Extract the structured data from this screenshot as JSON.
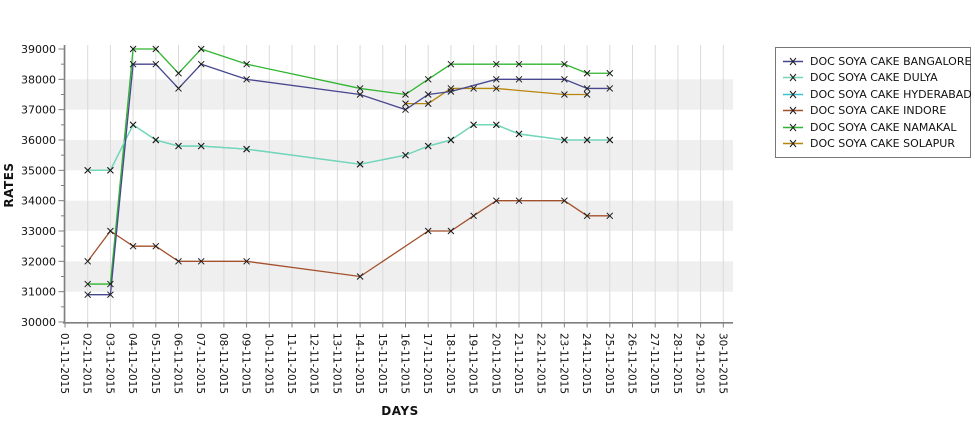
{
  "chart_data": {
    "type": "line",
    "title": "",
    "xlabel": "DAYS",
    "ylabel": "RATES",
    "ylim": [
      30000,
      39000
    ],
    "ytick_step": 1000,
    "ytick_minor_step": 500,
    "legend_position": "right",
    "marker": "x",
    "x_labels": [
      "01-11-2015",
      "02-11-2015",
      "03-11-2015",
      "04-11-2015",
      "05-11-2015",
      "06-11-2015",
      "07-11-2015",
      "08-11-2015",
      "09-11-2015",
      "10-11-2015",
      "11-11-2015",
      "12-11-2015",
      "13-11-2015",
      "14-11-2015",
      "15-11-2015",
      "16-11-2015",
      "17-11-2015",
      "18-11-2015",
      "19-11-2015",
      "20-11-2015",
      "21-11-2015",
      "22-11-2015",
      "23-11-2015",
      "24-11-2015",
      "25-11-2015",
      "26-11-2015",
      "27-11-2015",
      "28-11-2015",
      "29-11-2015",
      "30-11-2015"
    ],
    "series": [
      {
        "key": "bangalore",
        "name": "DOC SOYA CAKE BANGALORE",
        "color": "#47478F",
        "points": [
          [
            2,
            30900
          ],
          [
            3,
            30900
          ],
          [
            4,
            38500
          ],
          [
            5,
            38500
          ],
          [
            6,
            37700
          ],
          [
            7,
            38500
          ],
          [
            9,
            38000
          ],
          [
            14,
            37500
          ],
          [
            16,
            37000
          ],
          [
            17,
            37500
          ],
          [
            18,
            37600
          ],
          [
            20,
            38000
          ],
          [
            21,
            38000
          ],
          [
            23,
            38000
          ],
          [
            24,
            37700
          ],
          [
            25,
            37700
          ]
        ]
      },
      {
        "key": "dulya",
        "name": "DOC SOYA CAKE DULYA",
        "color": "#74D7B6",
        "points": [
          [
            2,
            35000
          ],
          [
            3,
            35000
          ],
          [
            4,
            36500
          ],
          [
            5,
            36000
          ],
          [
            6,
            35800
          ],
          [
            7,
            35800
          ],
          [
            9,
            35700
          ],
          [
            14,
            35200
          ],
          [
            16,
            35500
          ],
          [
            17,
            35800
          ],
          [
            18,
            36000
          ],
          [
            19,
            36500
          ],
          [
            20,
            36500
          ],
          [
            21,
            36200
          ],
          [
            23,
            36000
          ],
          [
            24,
            36000
          ],
          [
            25,
            36000
          ]
        ]
      },
      {
        "key": "hyderabad",
        "name": "DOC SOYA CAKE HYDERABAD",
        "color": "#3BC2CE",
        "overlaps": "dulya",
        "points": [
          [
            2,
            35000
          ],
          [
            3,
            35000
          ],
          [
            4,
            36500
          ],
          [
            5,
            36000
          ],
          [
            6,
            35800
          ],
          [
            7,
            35800
          ],
          [
            9,
            35700
          ],
          [
            14,
            35200
          ],
          [
            16,
            35500
          ],
          [
            17,
            35800
          ],
          [
            18,
            36000
          ],
          [
            19,
            36500
          ],
          [
            20,
            36500
          ],
          [
            21,
            36200
          ],
          [
            23,
            36000
          ],
          [
            24,
            36000
          ],
          [
            25,
            36000
          ]
        ]
      },
      {
        "key": "indore",
        "name": "DOC SOYA CAKE INDORE",
        "color": "#A3512C",
        "points": [
          [
            2,
            32000
          ],
          [
            3,
            33000
          ],
          [
            4,
            32500
          ],
          [
            5,
            32500
          ],
          [
            6,
            32000
          ],
          [
            7,
            32000
          ],
          [
            9,
            32000
          ],
          [
            14,
            31500
          ],
          [
            17,
            33000
          ],
          [
            18,
            33000
          ],
          [
            19,
            33500
          ],
          [
            20,
            34000
          ],
          [
            21,
            34000
          ],
          [
            23,
            34000
          ],
          [
            24,
            33500
          ],
          [
            25,
            33500
          ]
        ]
      },
      {
        "key": "namakal",
        "name": "DOC SOYA CAKE NAMAKAL",
        "color": "#2FB52F",
        "points": [
          [
            2,
            31250
          ],
          [
            3,
            31250
          ],
          [
            4,
            39000
          ],
          [
            5,
            39000
          ],
          [
            6,
            38200
          ],
          [
            7,
            39000
          ],
          [
            9,
            38500
          ],
          [
            14,
            37700
          ],
          [
            16,
            37500
          ],
          [
            17,
            38000
          ],
          [
            18,
            38500
          ],
          [
            20,
            38500
          ],
          [
            21,
            38500
          ],
          [
            23,
            38500
          ],
          [
            24,
            38200
          ],
          [
            25,
            38200
          ]
        ]
      },
      {
        "key": "solapur",
        "name": "DOC SOYA CAKE SOLAPUR",
        "color": "#B8860B",
        "points": [
          [
            16,
            37200
          ],
          [
            17,
            37200
          ],
          [
            18,
            37700
          ],
          [
            19,
            37700
          ],
          [
            20,
            37700
          ],
          [
            23,
            37500
          ],
          [
            24,
            37500
          ]
        ]
      }
    ],
    "style": {
      "band_fill": "#EFEFEF",
      "grid_color": "#DADADA",
      "axis_color": "#7F7F7F",
      "marker_color": "#1A1A1A",
      "text_color": "#111111"
    }
  }
}
